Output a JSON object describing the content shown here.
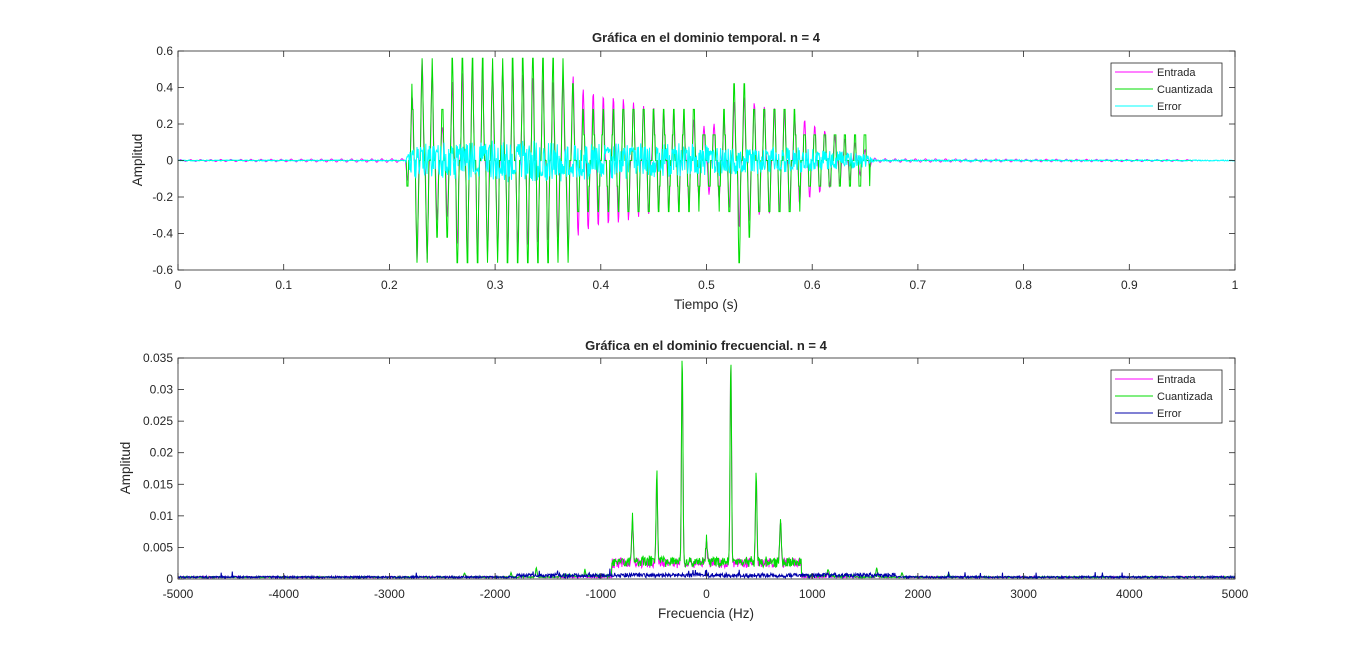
{
  "chart_data": [
    {
      "type": "line",
      "title": "Gráfica en el dominio temporal. n = 4",
      "xlabel": "Tiempo (s)",
      "ylabel": "Amplitud",
      "xlim": [
        0,
        1
      ],
      "ylim": [
        -0.6,
        0.6
      ],
      "xticks": [
        0,
        0.1,
        0.2,
        0.3,
        0.4,
        0.5,
        0.6,
        0.7,
        0.8,
        0.9,
        1
      ],
      "xtick_labels": [
        "0",
        "0.1",
        "0.2",
        "0.3",
        "0.4",
        "0.5",
        "0.6",
        "0.7",
        "0.8",
        "0.9",
        "1"
      ],
      "yticks": [
        -0.6,
        -0.4,
        -0.2,
        0,
        0.2,
        0.4,
        0.6
      ],
      "ytick_labels": [
        "-0.6",
        "-0.4",
        "-0.2",
        "0",
        "0.2",
        "0.4",
        "0.6"
      ],
      "grid": false,
      "legend": "top-right",
      "series": [
        {
          "name": "Entrada",
          "color": "#ff00ff",
          "envelope": {
            "t": [
              0,
              0.215,
              0.22,
              0.225,
              0.235,
              0.24,
              0.25,
              0.26,
              0.27,
              0.28,
              0.3,
              0.33,
              0.36,
              0.37,
              0.38,
              0.4,
              0.42,
              0.44,
              0.47,
              0.49,
              0.5,
              0.52,
              0.53,
              0.55,
              0.58,
              0.6,
              0.62,
              0.64,
              0.65,
              0.66,
              0.96
            ],
            "a": [
              0.005,
              0.01,
              0.28,
              0.55,
              0.55,
              0.5,
              0.18,
              0.45,
              0.5,
              0.52,
              0.5,
              0.48,
              0.42,
              0.5,
              0.4,
              0.36,
              0.34,
              0.3,
              0.27,
              0.22,
              0.18,
              0.24,
              0.38,
              0.3,
              0.27,
              0.2,
              0.14,
              0.1,
              0.06,
              0.01,
              0.005
            ]
          }
        },
        {
          "name": "Cuantizada",
          "color": "#00dd00",
          "envelope": {
            "t": [
              0,
              0.215,
              0.22,
              0.225,
              0.235,
              0.24,
              0.25,
              0.26,
              0.27,
              0.28,
              0.3,
              0.33,
              0.36,
              0.37,
              0.38,
              0.4,
              0.42,
              0.44,
              0.47,
              0.49,
              0.5,
              0.52,
              0.53,
              0.55,
              0.58,
              0.6,
              0.62,
              0.64,
              0.65,
              0.66,
              0.96
            ],
            "a": [
              0,
              0,
              0.28,
              0.56,
              0.56,
              0.56,
              0.28,
              0.56,
              0.56,
              0.56,
              0.56,
              0.56,
              0.56,
              0.56,
              0.28,
              0.28,
              0.28,
              0.28,
              0.28,
              0.28,
              0.14,
              0.28,
              0.56,
              0.28,
              0.28,
              0.14,
              0.14,
              0.14,
              0.14,
              0,
              0
            ]
          }
        },
        {
          "name": "Error",
          "color": "#00ffff",
          "envelope": {
            "t": [
              0,
              0.215,
              0.22,
              0.25,
              0.3,
              0.35,
              0.4,
              0.45,
              0.5,
              0.55,
              0.6,
              0.65,
              0.66,
              1
            ],
            "a": [
              0.003,
              0.003,
              0.1,
              0.1,
              0.12,
              0.12,
              0.11,
              0.1,
              0.09,
              0.08,
              0.07,
              0.04,
              0.005,
              0.003
            ]
          }
        }
      ]
    },
    {
      "type": "line",
      "title": "Gráfica en el dominio frecuencial. n = 4",
      "xlabel": "Frecuencia (Hz)",
      "ylabel": "Amplitud",
      "xlim": [
        -5000,
        5000
      ],
      "ylim": [
        0,
        0.035
      ],
      "xticks": [
        -5000,
        -4000,
        -3000,
        -2000,
        -1000,
        0,
        1000,
        2000,
        3000,
        4000,
        5000
      ],
      "xtick_labels": [
        "-5000",
        "-4000",
        "-3000",
        "-2000",
        "-1000",
        "0",
        "1000",
        "2000",
        "3000",
        "4000",
        "5000"
      ],
      "yticks": [
        0,
        0.005,
        0.01,
        0.015,
        0.02,
        0.025,
        0.03,
        0.035
      ],
      "ytick_labels": [
        "0",
        "0.005",
        "0.01",
        "0.015",
        "0.02",
        "0.025",
        "0.03",
        "0.035"
      ],
      "grid": false,
      "legend": "top-right",
      "series": [
        {
          "name": "Entrada",
          "color": "#ff00ff",
          "peaks": {
            "f": [
              -2290,
              -1850,
              -1610,
              -1150,
              -700,
              -470,
              -230,
              0,
              230,
              470,
              700,
              1150,
              1610,
              1850,
              2290
            ],
            "a": [
              0.0005,
              0.0006,
              0.0014,
              0.0008,
              0.007,
              0.014,
              0.0322,
              0.0035,
              0.0322,
              0.014,
              0.007,
              0.0008,
              0.0014,
              0.0006,
              0.0005
            ]
          }
        },
        {
          "name": "Cuantizada",
          "color": "#00dd00",
          "peaks": {
            "f": [
              -2290,
              -1850,
              -1610,
              -1150,
              -700,
              -470,
              -230,
              0,
              230,
              470,
              700,
              1150,
              1610,
              1850,
              2290
            ],
            "a": [
              0.0006,
              0.0007,
              0.0015,
              0.001,
              0.0073,
              0.0142,
              0.0322,
              0.0035,
              0.0322,
              0.0142,
              0.0073,
              0.001,
              0.0015,
              0.0007,
              0.0006
            ]
          }
        },
        {
          "name": "Error",
          "color": "#0000aa",
          "level": 0.0003,
          "max": 0.0013
        }
      ]
    }
  ]
}
